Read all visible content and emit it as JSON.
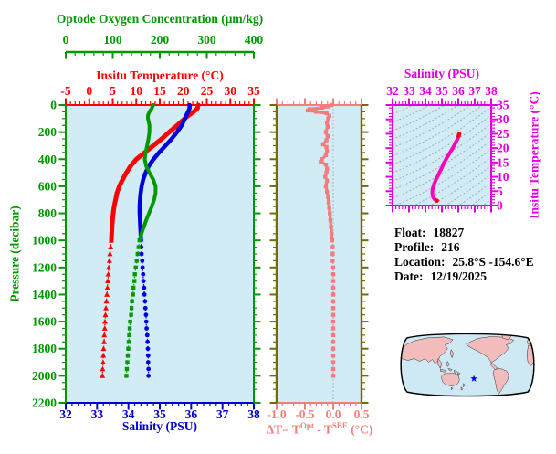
{
  "figure": {
    "background": "#ffffff",
    "panel_background": "#d2ecf6"
  },
  "info": {
    "lines": [
      {
        "label": "Float:",
        "value": "18827"
      },
      {
        "label": "Profile:",
        "value": "216"
      },
      {
        "label": "Location:",
        "value": "25.8°S  -154.6°E"
      },
      {
        "label": "Date:",
        "value": "12/19/2025"
      }
    ]
  },
  "main_panel": {
    "oxygen_axis": {
      "title": "Optode Oxygen Concentration (μm/kg)",
      "min": 0,
      "max": 400,
      "major_ticks": [
        0,
        100,
        200,
        300,
        400
      ],
      "minor_step": 20,
      "color": "#009900"
    },
    "temperature_axis": {
      "title": "Insitu Temperature (°C)",
      "min": -5,
      "max": 35,
      "major_ticks": [
        -5,
        0,
        5,
        10,
        15,
        20,
        25,
        30,
        35
      ],
      "minor_step": 1,
      "color": "#ff0000"
    },
    "salinity_axis": {
      "title": "Salinity (PSU)",
      "min": 32,
      "max": 38,
      "major_ticks": [
        32,
        33,
        34,
        35,
        36,
        37,
        38
      ],
      "minor_step": 0.2,
      "color": "#0000cc"
    },
    "pressure_axis": {
      "title": "Pressure (decibar)",
      "min": 0,
      "max": 2200,
      "major_ticks": [
        0,
        200,
        400,
        600,
        800,
        1000,
        1200,
        1400,
        1600,
        1800,
        2000,
        2200
      ],
      "minor_step": 50,
      "color": "#009900"
    }
  },
  "delta_panel": {
    "x_axis": {
      "min": -1.0,
      "max": 0.5,
      "tick_labels": [
        "-1.0",
        "-0.5",
        "0.0",
        "0.5"
      ],
      "tick_values": [
        -1.0,
        -0.5,
        0.0,
        0.5
      ],
      "minor_step": 0.1,
      "color": "#f47c7c"
    },
    "y_axis": {
      "min": 0,
      "max": 2200,
      "major_step": 200,
      "minor_step": 50,
      "color": "#6e6e00"
    },
    "label_text": "ΔT= TOpt - TSBE (°C)",
    "label_parts": {
      "p1": "ΔT= T",
      "p2": "Opt",
      "p3": " - T",
      "p4": "SBE",
      "p5": " (°C)"
    },
    "zero_line_color": "#aab4bc"
  },
  "ts_panel": {
    "salinity_axis": {
      "title": "Salinity (PSU)",
      "min": 32,
      "max": 38,
      "major_ticks": [
        32,
        33,
        34,
        35,
        36,
        37,
        38
      ],
      "minor_step": 0.2,
      "color": "#e000e0"
    },
    "temperature_axis": {
      "title": "Insitu Temperature (°C)",
      "min": 0,
      "max": 35,
      "major_ticks": [
        0,
        5,
        10,
        15,
        20,
        25,
        30,
        35
      ],
      "minor_step": 1,
      "color": "#e000e0"
    },
    "contour_color": "#96a8b6",
    "curve_color": "#ff00bb",
    "tip_color": "#ff0000"
  },
  "map": {
    "ocean_color": "#cfe9f4",
    "land_color": "#f2bcbc",
    "outline_color": "#000000",
    "star": {
      "color": "#0000ff",
      "fx": 0.545,
      "fy": 0.7
    }
  },
  "chart_data": [
    {
      "type": "line",
      "title": "Vertical profiles vs pressure",
      "ylabel": "Pressure (decibar)",
      "ylim": [
        0,
        2200
      ],
      "marker_change_depth": 1000,
      "legend_position": "none",
      "grid": false,
      "series": [
        {
          "name": "Insitu Temperature (°C)",
          "axis": "temperature",
          "xlim": [
            -5,
            35
          ],
          "color": "#ff0000",
          "marker": "triangle",
          "points": [
            [
              0,
              23.2
            ],
            [
              25,
              23.0
            ],
            [
              50,
              22.2
            ],
            [
              75,
              21.2
            ],
            [
              100,
              20.3
            ],
            [
              150,
              18.7
            ],
            [
              200,
              17.0
            ],
            [
              250,
              15.4
            ],
            [
              300,
              13.6
            ],
            [
              350,
              11.8
            ],
            [
              400,
              10.0
            ],
            [
              450,
              8.8
            ],
            [
              500,
              7.9
            ],
            [
              550,
              7.1
            ],
            [
              600,
              6.4
            ],
            [
              650,
              5.9
            ],
            [
              700,
              5.6
            ],
            [
              750,
              5.3
            ],
            [
              800,
              5.1
            ],
            [
              850,
              4.95
            ],
            [
              900,
              4.85
            ],
            [
              950,
              4.77
            ],
            [
              1000,
              4.7
            ],
            [
              1050,
              4.55
            ],
            [
              1100,
              4.4
            ],
            [
              1150,
              4.3
            ],
            [
              1200,
              4.15
            ],
            [
              1250,
              4.05
            ],
            [
              1300,
              3.95
            ],
            [
              1350,
              3.85
            ],
            [
              1400,
              3.75
            ],
            [
              1450,
              3.65
            ],
            [
              1500,
              3.55
            ],
            [
              1550,
              3.45
            ],
            [
              1600,
              3.35
            ],
            [
              1650,
              3.3
            ],
            [
              1700,
              3.2
            ],
            [
              1750,
              3.15
            ],
            [
              1800,
              3.05
            ],
            [
              1850,
              3.0
            ],
            [
              1900,
              2.95
            ],
            [
              1950,
              2.85
            ],
            [
              2000,
              2.8
            ]
          ]
        },
        {
          "name": "Salinity (PSU)",
          "axis": "salinity",
          "xlim": [
            32,
            38
          ],
          "color": "#0000dd",
          "marker": "circle",
          "points": [
            [
              0,
              35.95
            ],
            [
              25,
              35.95
            ],
            [
              50,
              35.9
            ],
            [
              75,
              35.85
            ],
            [
              100,
              35.8
            ],
            [
              150,
              35.7
            ],
            [
              200,
              35.55
            ],
            [
              250,
              35.38
            ],
            [
              300,
              35.18
            ],
            [
              350,
              34.98
            ],
            [
              400,
              34.8
            ],
            [
              450,
              34.65
            ],
            [
              500,
              34.55
            ],
            [
              550,
              34.47
            ],
            [
              600,
              34.42
            ],
            [
              650,
              34.39
            ],
            [
              700,
              34.37
            ],
            [
              750,
              34.36
            ],
            [
              800,
              34.36
            ],
            [
              850,
              34.37
            ],
            [
              900,
              34.38
            ],
            [
              950,
              34.39
            ],
            [
              1000,
              34.4
            ],
            [
              1050,
              34.41
            ],
            [
              1100,
              34.42
            ],
            [
              1150,
              34.44
            ],
            [
              1200,
              34.45
            ],
            [
              1250,
              34.47
            ],
            [
              1300,
              34.48
            ],
            [
              1350,
              34.5
            ],
            [
              1400,
              34.51
            ],
            [
              1450,
              34.53
            ],
            [
              1500,
              34.54
            ],
            [
              1550,
              34.56
            ],
            [
              1600,
              34.57
            ],
            [
              1650,
              34.58
            ],
            [
              1700,
              34.6
            ],
            [
              1750,
              34.61
            ],
            [
              1800,
              34.62
            ],
            [
              1850,
              34.63
            ],
            [
              1900,
              34.63
            ],
            [
              1950,
              34.64
            ],
            [
              2000,
              34.64
            ]
          ]
        },
        {
          "name": "Optode Oxygen Concentration (μm/kg)",
          "axis": "oxygen",
          "xlim": [
            0,
            400
          ],
          "color": "#009900",
          "marker": "square",
          "points": [
            [
              0,
              186
            ],
            [
              25,
              183
            ],
            [
              50,
              178
            ],
            [
              75,
              175
            ],
            [
              100,
              175
            ],
            [
              150,
              178
            ],
            [
              200,
              178
            ],
            [
              250,
              176
            ],
            [
              300,
              173
            ],
            [
              350,
              170
            ],
            [
              400,
              168
            ],
            [
              450,
              171
            ],
            [
              500,
              178
            ],
            [
              550,
              186
            ],
            [
              600,
              191
            ],
            [
              650,
              191
            ],
            [
              700,
              188
            ],
            [
              750,
              183
            ],
            [
              800,
              177
            ],
            [
              850,
              171
            ],
            [
              900,
              166
            ],
            [
              950,
              161
            ],
            [
              1000,
              157
            ],
            [
              1050,
              155
            ],
            [
              1100,
              153
            ],
            [
              1150,
              151
            ],
            [
              1200,
              149
            ],
            [
              1250,
              147
            ],
            [
              1300,
              146
            ],
            [
              1350,
              144
            ],
            [
              1400,
              143
            ],
            [
              1450,
              141
            ],
            [
              1500,
              140
            ],
            [
              1550,
              139
            ],
            [
              1600,
              137
            ],
            [
              1650,
              136
            ],
            [
              1700,
              135
            ],
            [
              1750,
              134
            ],
            [
              1800,
              133
            ],
            [
              1850,
              132
            ],
            [
              1900,
              131
            ],
            [
              1950,
              130
            ],
            [
              2000,
              129
            ]
          ]
        }
      ]
    },
    {
      "type": "line",
      "title": "ΔT= TOpt - TSBE (°C)",
      "xlim": [
        -1.0,
        0.5
      ],
      "ylim": [
        0,
        2200
      ],
      "marker_change_depth": 1000,
      "series": [
        {
          "name": "ΔT",
          "color": "#f47c7c",
          "marker": "square",
          "points": [
            [
              0,
              -0.03
            ],
            [
              10,
              -0.08
            ],
            [
              20,
              -0.2
            ],
            [
              30,
              -0.42
            ],
            [
              40,
              -0.45
            ],
            [
              50,
              -0.3
            ],
            [
              60,
              -0.12
            ],
            [
              80,
              -0.07
            ],
            [
              100,
              -0.09
            ],
            [
              130,
              -0.11
            ],
            [
              160,
              -0.1
            ],
            [
              200,
              -0.13
            ],
            [
              230,
              -0.1
            ],
            [
              260,
              -0.12
            ],
            [
              290,
              -0.18
            ],
            [
              310,
              -0.12
            ],
            [
              340,
              -0.11
            ],
            [
              370,
              -0.13
            ],
            [
              400,
              -0.2
            ],
            [
              420,
              -0.22
            ],
            [
              440,
              -0.13
            ],
            [
              470,
              -0.11
            ],
            [
              500,
              -0.12
            ],
            [
              530,
              -0.14
            ],
            [
              560,
              -0.11
            ],
            [
              600,
              -0.13
            ],
            [
              640,
              -0.11
            ],
            [
              680,
              -0.09
            ],
            [
              720,
              -0.08
            ],
            [
              760,
              -0.07
            ],
            [
              800,
              -0.06
            ],
            [
              850,
              -0.05
            ],
            [
              900,
              -0.04
            ],
            [
              950,
              -0.03
            ],
            [
              1000,
              -0.02
            ],
            [
              1050,
              -0.01
            ],
            [
              1100,
              -0.01
            ],
            [
              1150,
              -0.01
            ],
            [
              1200,
              0
            ],
            [
              1250,
              0
            ],
            [
              1300,
              0
            ],
            [
              1350,
              0
            ],
            [
              1400,
              0
            ],
            [
              1450,
              0
            ],
            [
              1500,
              0
            ],
            [
              1550,
              0
            ],
            [
              1600,
              0
            ],
            [
              1650,
              0
            ],
            [
              1700,
              0
            ],
            [
              1750,
              0
            ],
            [
              1800,
              0
            ],
            [
              1850,
              0
            ],
            [
              1900,
              0
            ],
            [
              1950,
              0
            ],
            [
              2000,
              0
            ]
          ]
        }
      ]
    },
    {
      "type": "line",
      "title": "T-S diagram",
      "xlabel": "Salinity (PSU)",
      "ylabel": "Insitu Temperature (°C)",
      "xlim": [
        32,
        38
      ],
      "ylim": [
        0,
        35
      ],
      "series": [
        {
          "name": "T-S curve",
          "color": "#ff00bb",
          "tip_color": "#ff0000",
          "points": [
            [
              34.7,
              1.7
            ],
            [
              34.57,
              2.1
            ],
            [
              34.47,
              2.9
            ],
            [
              34.42,
              3.9
            ],
            [
              34.42,
              5.1
            ],
            [
              34.46,
              6.3
            ],
            [
              34.53,
              7.5
            ],
            [
              34.63,
              8.9
            ],
            [
              34.76,
              10.3
            ],
            [
              34.89,
              11.9
            ],
            [
              35.01,
              13.3
            ],
            [
              35.13,
              14.9
            ],
            [
              35.29,
              16.5
            ],
            [
              35.46,
              18.1
            ],
            [
              35.61,
              19.5
            ],
            [
              35.73,
              20.7
            ],
            [
              35.86,
              22.1
            ],
            [
              35.96,
              23.3
            ],
            [
              36.03,
              24.3
            ],
            [
              36.06,
              25.0
            ]
          ]
        }
      ]
    }
  ]
}
